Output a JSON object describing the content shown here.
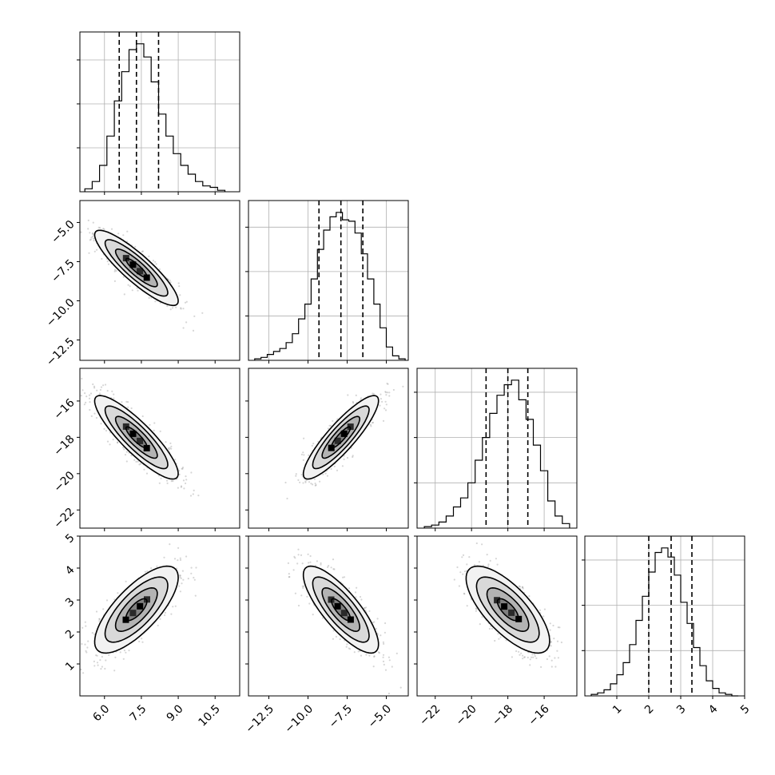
{
  "chart_data": {
    "type": "corner",
    "title": "",
    "parameters": [
      {
        "index": 0,
        "lim": [
          5.0,
          11.5
        ],
        "ticks": [
          6.0,
          7.5,
          9.0,
          10.5
        ],
        "tick_labels": [
          "6.0",
          "7.5",
          "9.0",
          "10.5"
        ],
        "quantiles": {
          "q16": 6.6,
          "q50": 7.3,
          "q84": 8.2
        },
        "histogram": {
          "bins": [
            5.2,
            5.5,
            5.8,
            6.1,
            6.4,
            6.7,
            7.0,
            7.3,
            7.6,
            7.9,
            8.2,
            8.5,
            8.8,
            9.1,
            9.4,
            9.7,
            10.0,
            10.3,
            10.6,
            10.9
          ],
          "counts": [
            2,
            7,
            18,
            38,
            62,
            82,
            97,
            101,
            92,
            75,
            53,
            38,
            26,
            18,
            12,
            7,
            4,
            3,
            1
          ]
        },
        "hist_gridlines": [
          30,
          60,
          90
        ]
      },
      {
        "index": 1,
        "lim": [
          -13.8,
          -3.6
        ],
        "ticks": [
          -12.5,
          -10.0,
          -7.5,
          -5.0
        ],
        "tick_labels": [
          "−12.5",
          "−10.0",
          "−7.5",
          "−5.0"
        ],
        "quantiles": {
          "q16": -9.3,
          "q50": -7.9,
          "q84": -6.5
        },
        "histogram": {
          "bins": [
            -13.4,
            -13.0,
            -12.6,
            -12.2,
            -11.8,
            -11.4,
            -11.0,
            -10.6,
            -10.2,
            -9.8,
            -9.4,
            -9.0,
            -8.6,
            -8.2,
            -7.8,
            -7.4,
            -7.0,
            -6.6,
            -6.2,
            -5.8,
            -5.4,
            -5.0,
            -4.6,
            -4.2,
            -3.8
          ],
          "counts": [
            1,
            2,
            4,
            6,
            8,
            12,
            18,
            28,
            38,
            55,
            75,
            88,
            97,
            100,
            95,
            94,
            86,
            72,
            55,
            38,
            22,
            9,
            3,
            1
          ]
        },
        "hist_gridlines": [
          30,
          60,
          90
        ]
      },
      {
        "index": 2,
        "lim": [
          -23.0,
          -14.2
        ],
        "ticks": [
          -22,
          -20,
          -18,
          -16
        ],
        "tick_labels": [
          "−22",
          "−20",
          "−18",
          "−16"
        ],
        "quantiles": {
          "q16": -19.2,
          "q50": -18.0,
          "q84": -16.9
        },
        "histogram": {
          "bins": [
            -22.6,
            -22.2,
            -21.8,
            -21.4,
            -21.0,
            -20.6,
            -20.2,
            -19.8,
            -19.4,
            -19.0,
            -18.6,
            -18.2,
            -17.8,
            -17.4,
            -17.0,
            -16.6,
            -16.2,
            -15.8,
            -15.4,
            -15.0,
            -14.6
          ],
          "counts": [
            1,
            2,
            4,
            8,
            14,
            20,
            30,
            45,
            60,
            76,
            88,
            95,
            98,
            85,
            72,
            55,
            38,
            18,
            8,
            3
          ]
        },
        "hist_gridlines": [
          30,
          60,
          90
        ]
      },
      {
        "index": 3,
        "lim": [
          0.0,
          5.0
        ],
        "ticks": [
          1,
          2,
          3,
          4,
          5
        ],
        "tick_labels": [
          "1",
          "2",
          "3",
          "4",
          "5"
        ],
        "quantiles": {
          "q16": 2.0,
          "q50": 2.7,
          "q84": 3.35
        },
        "histogram": {
          "bins": [
            0.2,
            0.4,
            0.6,
            0.8,
            1.0,
            1.2,
            1.4,
            1.6,
            1.8,
            2.0,
            2.2,
            2.4,
            2.6,
            2.8,
            3.0,
            3.2,
            3.4,
            3.6,
            3.8,
            4.0,
            4.2,
            4.4,
            4.6,
            4.8
          ],
          "counts": [
            1,
            2,
            4,
            8,
            14,
            22,
            34,
            50,
            66,
            82,
            95,
            98,
            92,
            80,
            62,
            48,
            32,
            20,
            10,
            5,
            2,
            1,
            0
          ]
        },
        "hist_gridlines": [
          30,
          60,
          90
        ]
      }
    ],
    "pairs": [
      {
        "x": 0,
        "y": 1,
        "mean": [
          7.3,
          -7.9
        ],
        "sd": [
          0.85,
          1.2
        ],
        "corr": -0.88
      },
      {
        "x": 0,
        "y": 2,
        "mean": [
          7.3,
          -18.0
        ],
        "sd": [
          0.85,
          1.15
        ],
        "corr": -0.87
      },
      {
        "x": 0,
        "y": 3,
        "mean": [
          7.3,
          2.7
        ],
        "sd": [
          0.85,
          0.68
        ],
        "corr": 0.74
      },
      {
        "x": 1,
        "y": 2,
        "mean": [
          -7.9,
          -18.0
        ],
        "sd": [
          1.2,
          1.15
        ],
        "corr": 0.88
      },
      {
        "x": 1,
        "y": 3,
        "mean": [
          -7.9,
          2.7
        ],
        "sd": [
          1.2,
          0.68
        ],
        "corr": -0.8
      },
      {
        "x": 2,
        "y": 3,
        "mean": [
          -18.0,
          2.7
        ],
        "sd": [
          1.15,
          0.68
        ],
        "corr": -0.72
      }
    ],
    "contour_levels_sigma": [
      0.5,
      1.0,
      1.5,
      2.0
    ],
    "grid": true,
    "legend": "none"
  }
}
